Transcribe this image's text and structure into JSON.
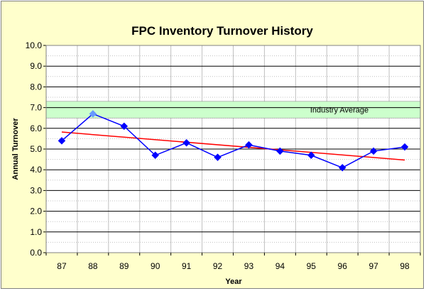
{
  "chart_data": {
    "type": "line",
    "title": "FPC Inventory Turnover History",
    "xlabel": "Year",
    "ylabel": "Annual Turnover",
    "categories": [
      "87",
      "88",
      "89",
      "90",
      "91",
      "92",
      "93",
      "94",
      "95",
      "96",
      "97",
      "98"
    ],
    "ylim": [
      0,
      10
    ],
    "y_ticks": [
      "0.0",
      "1.0",
      "2.0",
      "3.0",
      "4.0",
      "5.0",
      "6.0",
      "7.0",
      "8.0",
      "9.0",
      "10.0"
    ],
    "grid": true,
    "series": [
      {
        "values": [
          5.4,
          6.7,
          6.1,
          4.7,
          5.3,
          4.6,
          5.2,
          4.9,
          4.7,
          4.1,
          4.9,
          5.1
        ],
        "color": "#0000ff",
        "marker": "diamond"
      }
    ],
    "trendline": {
      "start": 5.82,
      "end": 4.47,
      "color": "#ff0000"
    },
    "band": {
      "label": "Industry Average",
      "low": 6.5,
      "high": 7.3,
      "color": "#ccffcc"
    },
    "colors": {
      "background": "#ffffcc",
      "plot_background": "#ffffff",
      "grid": "#000000",
      "minor_grid": "#c0c0c0",
      "highlighted_marker": "#6699ff"
    }
  }
}
